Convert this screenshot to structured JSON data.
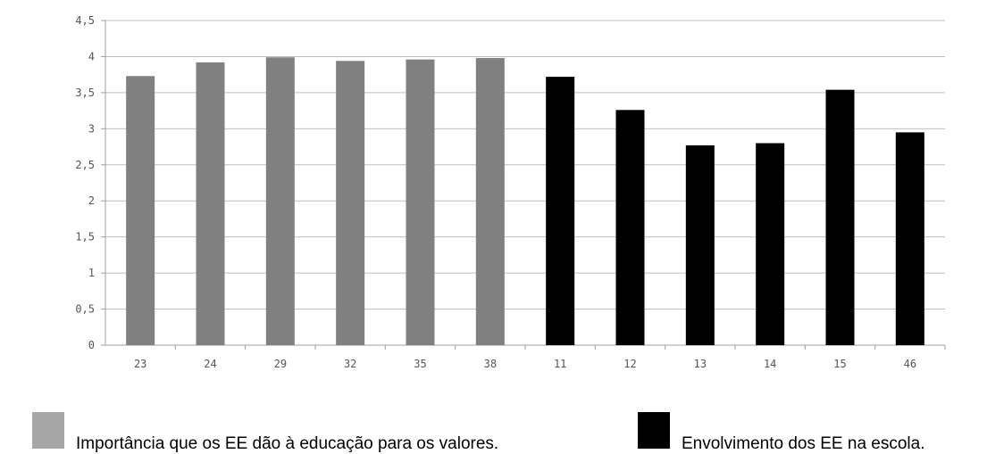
{
  "chart_data": {
    "type": "bar",
    "categories": [
      "23",
      "24",
      "29",
      "32",
      "35",
      "38",
      "11",
      "12",
      "13",
      "14",
      "15",
      "46"
    ],
    "values": [
      3.73,
      3.92,
      3.99,
      3.94,
      3.96,
      3.98,
      3.72,
      3.26,
      2.77,
      2.8,
      3.54,
      2.95
    ],
    "groups": [
      {
        "name": "Importância que os EE dão à educação para os valores.",
        "color": "#808080",
        "categories": [
          "23",
          "24",
          "29",
          "32",
          "35",
          "38"
        ]
      },
      {
        "name": "Envolvimento dos EE na escola.",
        "color": "#000000",
        "categories": [
          "11",
          "12",
          "13",
          "14",
          "15",
          "46"
        ]
      }
    ],
    "ylim": [
      0,
      4.5
    ],
    "yticks": [
      "0",
      "0,5",
      "1",
      "1,5",
      "2",
      "2,5",
      "3",
      "3,5",
      "4",
      "4,5"
    ],
    "grid": true,
    "legend_position": "bottom",
    "title": "",
    "xlabel": "",
    "ylabel": ""
  },
  "legend": [
    {
      "label": "Importância que os EE dão à educação para os valores.",
      "color": "#a6a6a6"
    },
    {
      "label": "Envolvimento dos EE na escola.",
      "color": "#000000"
    }
  ]
}
